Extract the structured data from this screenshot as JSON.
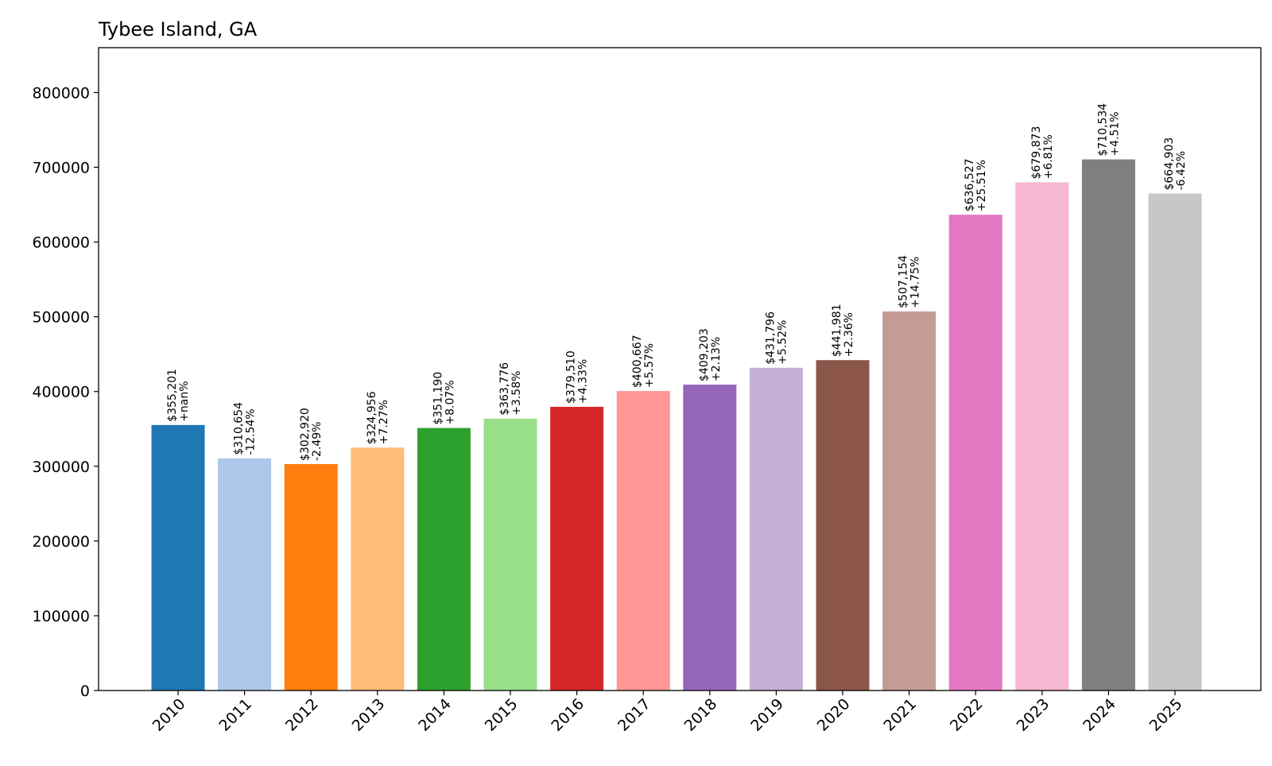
{
  "chart_data": {
    "type": "bar",
    "title": "Tybee Island, GA",
    "xlabel": "",
    "ylabel": "",
    "ylim": [
      0,
      860000
    ],
    "yticks": [
      0,
      100000,
      200000,
      300000,
      400000,
      500000,
      600000,
      700000,
      800000
    ],
    "ytick_labels": [
      "0",
      "100000",
      "200000",
      "300000",
      "400000",
      "500000",
      "600000",
      "700000",
      "800000"
    ],
    "grid": false,
    "legend": "none",
    "categories": [
      "2010",
      "2011",
      "2012",
      "2013",
      "2014",
      "2015",
      "2016",
      "2017",
      "2018",
      "2019",
      "2020",
      "2021",
      "2022",
      "2023",
      "2024",
      "2025"
    ],
    "values": [
      355201,
      310654,
      302920,
      324956,
      351190,
      363776,
      379510,
      400667,
      409203,
      431796,
      441981,
      507154,
      636527,
      679873,
      710534,
      664903
    ],
    "value_labels": [
      "$355,201",
      "$310,654",
      "$302,920",
      "$324,956",
      "$351,190",
      "$363,776",
      "$379,510",
      "$400,667",
      "$409,203",
      "$431,796",
      "$441,981",
      "$507,154",
      "$636,527",
      "$679,873",
      "$710,534",
      "$664,903"
    ],
    "change_labels": [
      "+nan%",
      "-12.54%",
      "-2.49%",
      "+7.27%",
      "+8.07%",
      "+3.58%",
      "+4.33%",
      "+5.57%",
      "+2.13%",
      "+5.52%",
      "+2.36%",
      "+14.75%",
      "+25.51%",
      "+6.81%",
      "+4.51%",
      "-6.42%"
    ],
    "colors": [
      "#1f77b4",
      "#aec7e8",
      "#ff7f0e",
      "#ffbb78",
      "#2ca02c",
      "#98df8a",
      "#d62728",
      "#ff9896",
      "#9467bd",
      "#c5b0d5",
      "#8c564b",
      "#c49c94",
      "#e377c2",
      "#f7b6d2",
      "#7f7f7f",
      "#c7c7c7"
    ]
  }
}
